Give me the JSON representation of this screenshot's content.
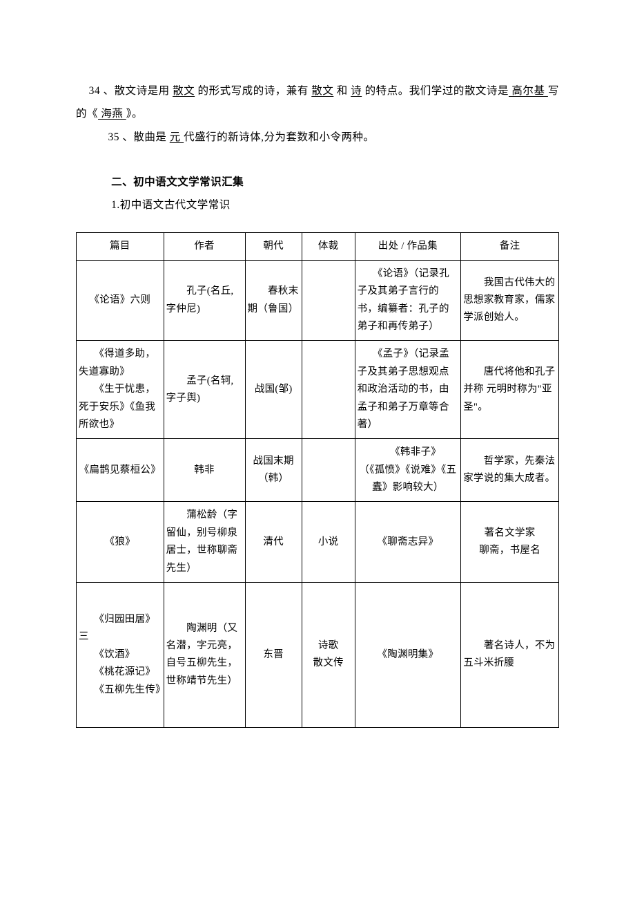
{
  "p34": {
    "t1": "34 、散文诗是用 ",
    "u1": "散文",
    "t2": " 的形式写成的诗，兼有 ",
    "u2": "散文",
    "t3": " 和 ",
    "u3": "诗",
    "t4": " 的特点。我们学过的散文诗是",
    "u4": " 高尔基 ",
    "t5": "写的《",
    "u5": " 海燕 ",
    "t6": "》。"
  },
  "p35": {
    "t1": "35 、散曲是 ",
    "u1": " 元 ",
    "t2": " 代盛行的新诗体,分为套数和小令两种。"
  },
  "section_title": "二、初中语文文学常识汇集",
  "subtitle": "1.初中语文古代文学常识",
  "table": {
    "headers": [
      "篇目",
      "作者",
      "朝代",
      "体裁",
      "出处 / 作品集",
      "备注"
    ],
    "rows": [
      {
        "title": "《论语》六则",
        "author": "　　孔子(名丘,字仲尼)",
        "dynasty": "　　春秋末期（鲁国）",
        "genre": "",
        "source": "　　《论语》（记录孔子及其弟子言行的书，编纂者：孔子的弟子和再传弟子）",
        "note": "　　我国古代伟大的思想家教育家，儒家学派创始人。"
      },
      {
        "title": "　　《得道多助，失道寡助》\n　　《生于忧患，死于安乐》《鱼我所欲也》",
        "author": "　　孟子(名轲,字子舆)",
        "dynasty": "战国(邹)",
        "genre": "",
        "source": "　　《孟子》（记录孟子及其弟子思想观点和政治活动的书，由孟子和弟子万章等合著）",
        "note": "　　唐代将他和孔子并称 元明时称为\"亚圣\"。"
      },
      {
        "title": "《扁鹊见蔡桓公》",
        "author": "韩非",
        "dynasty": "战国末期（韩）",
        "genre": "",
        "source": "　　《韩非子》\n（《孤愤》《说难》《五蠹》影响较大）",
        "note": "　　哲学家，先秦法家学说的集大成者。"
      },
      {
        "title": "《狼》",
        "author": "　　蒲松龄（字留仙，别号柳泉居士，世称聊斋先生）",
        "dynasty": "清代",
        "genre": "小说",
        "source": "《聊斋志异》",
        "note": "著名文学家\n聊斋，书屋名"
      },
      {
        "title_pre": "　　《归园田居》三\n　　《饮酒》\n　　《桃花源记》\n　　《五柳先生传》",
        "author": "　　陶渊明（又名潜，字元亮，自号五柳先生，世称靖节先生）",
        "dynasty": "东晋",
        "genre": "诗歌\n散文传",
        "source": "《陶渊明集》",
        "note": "　　著名诗人，不为五斗米折腰"
      }
    ]
  }
}
